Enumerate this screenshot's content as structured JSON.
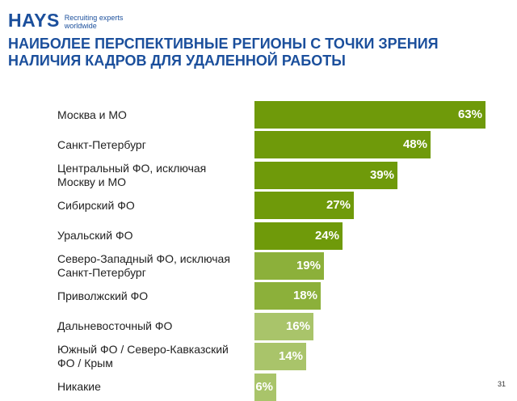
{
  "logo": {
    "brand": "HAYS",
    "tagline_line1": "Recruiting experts",
    "tagline_line2": "worldwide"
  },
  "title": "НАИБОЛЕЕ ПЕРСПЕКТИВНЫЕ РЕГИОНЫ С ТОЧКИ ЗРЕНИЯ НАЛИЧИЯ КАДРОВ ДЛЯ УДАЛЕННОЙ РАБОТЫ",
  "page_number": "31",
  "colors": {
    "dark_bar": "#6f9a0a",
    "light_bar": "#a9c46a",
    "title": "#1b4f9c"
  },
  "chart_data": {
    "type": "bar",
    "orientation": "horizontal",
    "title": "НАИБОЛЕЕ ПЕРСПЕКТИВНЫЕ РЕГИОНЫ С ТОЧКИ ЗРЕНИЯ НАЛИЧИЯ КАДРОВ ДЛЯ УДАЛЕННОЙ РАБОТЫ",
    "xlim": [
      0,
      63
    ],
    "unit": "%",
    "categories": [
      [
        "Москва и МО"
      ],
      [
        "Санкт-Петербург"
      ],
      [
        "Центральный ФО, исключая",
        "Москву и МО"
      ],
      [
        "Сибирский ФО"
      ],
      [
        "Уральский ФО"
      ],
      [
        "Северо-Западный ФО, исключая",
        "Санкт-Петербург"
      ],
      [
        "Приволжский ФО"
      ],
      [
        "Дальневосточный ФО"
      ],
      [
        "Южный ФО / Северо-Кавказский",
        "ФО / Крым"
      ],
      [
        "Никакие"
      ]
    ],
    "values": [
      63,
      48,
      39,
      27,
      24,
      19,
      18,
      16,
      14,
      6
    ],
    "value_labels": [
      "63%",
      "48%",
      "39%",
      "27%",
      "24%",
      "19%",
      "18%",
      "16%",
      "14%",
      "6%"
    ],
    "bar_shades": [
      "dark",
      "dark",
      "dark",
      "dark",
      "dark",
      "medium",
      "medium",
      "light",
      "light",
      "light"
    ]
  }
}
